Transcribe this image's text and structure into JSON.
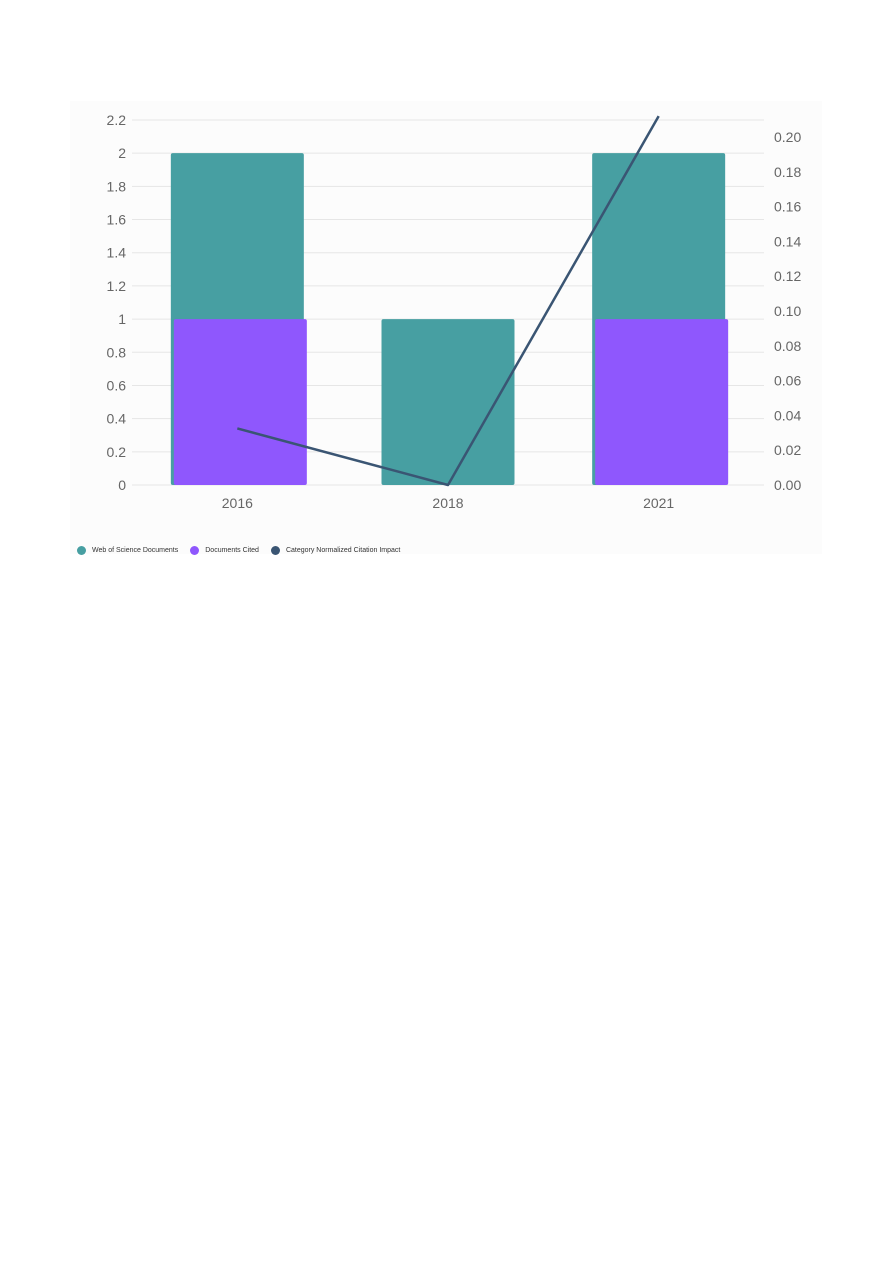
{
  "chart_data": {
    "type": "bar",
    "categories": [
      "2016",
      "2018",
      "2021"
    ],
    "series": [
      {
        "name": "Web of Science Documents",
        "kind": "bar",
        "axis": "left",
        "color": "#479fa2",
        "values": [
          2,
          1,
          2
        ]
      },
      {
        "name": "Documents Cited",
        "kind": "bar",
        "axis": "left",
        "color": "#8f57fd",
        "values": [
          1,
          0,
          1
        ]
      },
      {
        "name": "Category Normalized Citation Impact",
        "kind": "line",
        "axis": "right",
        "color": "#3a5573",
        "values": [
          0.0325,
          0,
          0.212
        ]
      }
    ],
    "y_left": {
      "ylim": [
        0,
        2.2
      ],
      "ticks": [
        "0",
        "0.2",
        "0.4",
        "0.6",
        "0.8",
        "1",
        "1.2",
        "1.4",
        "1.6",
        "1.8",
        "2",
        "2.2"
      ]
    },
    "y_right": {
      "ylim": [
        0,
        0.2
      ],
      "ticks": [
        "0.00",
        "0.02",
        "0.04",
        "0.06",
        "0.08",
        "0.10",
        "0.12",
        "0.14",
        "0.16",
        "0.18",
        "0.20"
      ]
    },
    "grid": true,
    "legend_position": "bottom-left",
    "title": "",
    "xlabel": "",
    "ylabel": ""
  }
}
